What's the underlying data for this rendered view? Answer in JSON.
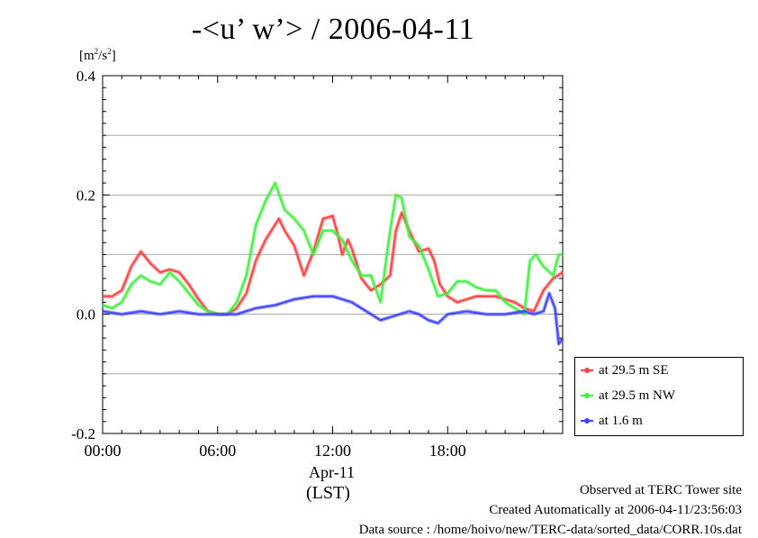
{
  "title": "-<u’ w’> / 2006-04-11",
  "unit_label": {
    "base": "[m",
    "sup1": "2",
    "mid": "/s",
    "sup2": "2",
    "end": "]"
  },
  "date_label": "Apr-11",
  "tz_label": "(LST)",
  "footer": {
    "line1": "Observed at TERC Tower site",
    "line2": "Created Automatically at 2006-04-11/23:56:03",
    "line3": "Data source : /home/hoivo/new/TERC-data/sorted_data/CORR.10s.dat"
  },
  "chart_data": {
    "type": "line",
    "title": "-<u’ w’> / 2006-04-11",
    "xlabel": "",
    "ylabel": "[m2/s2]",
    "xlim": [
      0,
      24
    ],
    "ylim": [
      -0.2,
      0.4
    ],
    "x_ticks": [
      0,
      6,
      12,
      18
    ],
    "x_tick_labels": [
      "00:00",
      "06:00",
      "12:00",
      "18:00"
    ],
    "y_ticks": [
      -0.2,
      0.0,
      0.2,
      0.4
    ],
    "y_tick_labels": [
      "-0.2",
      "0.0",
      "0.2",
      "0.4"
    ],
    "grid": "horizontal",
    "legend": "bottom-right-outside",
    "series": [
      {
        "name": "at 29.5 m SE",
        "color": "#ff4040",
        "points": [
          [
            0,
            0.03
          ],
          [
            0.5,
            0.03
          ],
          [
            1,
            0.04
          ],
          [
            1.5,
            0.08
          ],
          [
            2,
            0.105
          ],
          [
            2.5,
            0.085
          ],
          [
            3,
            0.07
          ],
          [
            3.5,
            0.075
          ],
          [
            4,
            0.07
          ],
          [
            4.5,
            0.05
          ],
          [
            5,
            0.025
          ],
          [
            5.5,
            0.005
          ],
          [
            6,
            0.0
          ],
          [
            6.5,
            0.0
          ],
          [
            7,
            0.01
          ],
          [
            7.5,
            0.035
          ],
          [
            8,
            0.09
          ],
          [
            8.5,
            0.125
          ],
          [
            9,
            0.15
          ],
          [
            9.2,
            0.16
          ],
          [
            9.5,
            0.14
          ],
          [
            10,
            0.115
          ],
          [
            10.5,
            0.065
          ],
          [
            11,
            0.105
          ],
          [
            11.5,
            0.16
          ],
          [
            12,
            0.165
          ],
          [
            12.3,
            0.13
          ],
          [
            12.5,
            0.1
          ],
          [
            12.8,
            0.125
          ],
          [
            13,
            0.11
          ],
          [
            13.5,
            0.06
          ],
          [
            14,
            0.04
          ],
          [
            14.5,
            0.05
          ],
          [
            15,
            0.065
          ],
          [
            15.3,
            0.14
          ],
          [
            15.6,
            0.17
          ],
          [
            16,
            0.14
          ],
          [
            16.5,
            0.105
          ],
          [
            17,
            0.11
          ],
          [
            17.3,
            0.09
          ],
          [
            17.6,
            0.05
          ],
          [
            18,
            0.03
          ],
          [
            18.5,
            0.02
          ],
          [
            19,
            0.025
          ],
          [
            19.5,
            0.03
          ],
          [
            20,
            0.03
          ],
          [
            20.5,
            0.03
          ],
          [
            21,
            0.025
          ],
          [
            21.5,
            0.02
          ],
          [
            22,
            0.01
          ],
          [
            22.5,
            0.005
          ],
          [
            23,
            0.04
          ],
          [
            23.5,
            0.06
          ],
          [
            24,
            0.07
          ]
        ]
      },
      {
        "name": "at 29.5 m NW",
        "color": "#40f040",
        "points": [
          [
            0,
            0.015
          ],
          [
            0.5,
            0.01
          ],
          [
            1,
            0.02
          ],
          [
            1.5,
            0.05
          ],
          [
            2,
            0.065
          ],
          [
            2.5,
            0.055
          ],
          [
            3,
            0.05
          ],
          [
            3.5,
            0.07
          ],
          [
            4,
            0.055
          ],
          [
            4.5,
            0.035
          ],
          [
            5,
            0.015
          ],
          [
            5.5,
            0.005
          ],
          [
            6,
            0.0
          ],
          [
            6.5,
            0.0
          ],
          [
            7,
            0.02
          ],
          [
            7.5,
            0.065
          ],
          [
            8,
            0.15
          ],
          [
            8.5,
            0.19
          ],
          [
            9,
            0.22
          ],
          [
            9.5,
            0.175
          ],
          [
            10,
            0.16
          ],
          [
            10.5,
            0.14
          ],
          [
            11,
            0.1
          ],
          [
            11.5,
            0.14
          ],
          [
            12,
            0.14
          ],
          [
            12.5,
            0.125
          ],
          [
            13,
            0.09
          ],
          [
            13.5,
            0.065
          ],
          [
            14,
            0.065
          ],
          [
            14.5,
            0.02
          ],
          [
            15,
            0.14
          ],
          [
            15.3,
            0.2
          ],
          [
            15.6,
            0.195
          ],
          [
            16,
            0.13
          ],
          [
            16.5,
            0.115
          ],
          [
            17,
            0.075
          ],
          [
            17.5,
            0.03
          ],
          [
            18,
            0.035
          ],
          [
            18.5,
            0.055
          ],
          [
            19,
            0.055
          ],
          [
            19.5,
            0.045
          ],
          [
            20,
            0.04
          ],
          [
            20.5,
            0.04
          ],
          [
            21,
            0.02
          ],
          [
            21.5,
            0.01
          ],
          [
            22,
            0.0
          ],
          [
            22.3,
            0.09
          ],
          [
            22.6,
            0.1
          ],
          [
            23,
            0.08
          ],
          [
            23.5,
            0.065
          ],
          [
            23.8,
            0.1
          ],
          [
            24,
            0.1
          ]
        ]
      },
      {
        "name": "at 1.6 m",
        "color": "#4040ff",
        "points": [
          [
            0,
            0.005
          ],
          [
            1,
            0.0
          ],
          [
            2,
            0.005
          ],
          [
            3,
            0.0
          ],
          [
            4,
            0.005
          ],
          [
            5,
            0.0
          ],
          [
            6,
            0.0
          ],
          [
            7,
            0.0
          ],
          [
            8,
            0.01
          ],
          [
            9,
            0.015
          ],
          [
            10,
            0.025
          ],
          [
            11,
            0.03
          ],
          [
            12,
            0.03
          ],
          [
            13,
            0.02
          ],
          [
            14,
            0.0
          ],
          [
            14.5,
            -0.01
          ],
          [
            15,
            -0.005
          ],
          [
            16,
            0.005
          ],
          [
            16.5,
            0.0
          ],
          [
            17,
            -0.01
          ],
          [
            17.5,
            -0.015
          ],
          [
            18,
            0.0
          ],
          [
            19,
            0.005
          ],
          [
            20,
            0.0
          ],
          [
            21,
            0.0
          ],
          [
            22,
            0.005
          ],
          [
            22.5,
            0.0
          ],
          [
            23,
            0.005
          ],
          [
            23.3,
            0.035
          ],
          [
            23.6,
            0.01
          ],
          [
            23.8,
            -0.05
          ],
          [
            24,
            -0.04
          ]
        ]
      }
    ]
  }
}
